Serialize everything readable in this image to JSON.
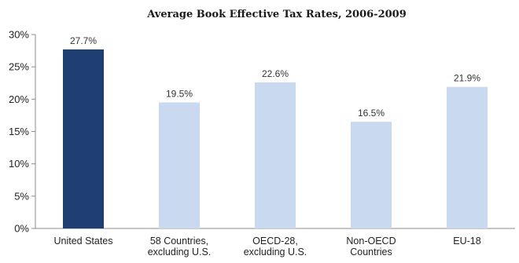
{
  "chart_data": {
    "type": "bar",
    "title": "Average Book Effective Tax Rates, 2006-2009",
    "xlabel": "",
    "ylabel": "",
    "ylim": [
      0,
      30
    ],
    "yticks": [
      "0%",
      "5%",
      "10%",
      "15%",
      "20%",
      "25%",
      "30%"
    ],
    "grid": false,
    "categories": [
      [
        "United States"
      ],
      [
        "58 Countries,",
        "excluding U.S."
      ],
      [
        "OECD-28,",
        "excluding U.S."
      ],
      [
        "Non-OECD",
        "Countries"
      ],
      [
        "EU-18"
      ]
    ],
    "values": [
      27.7,
      19.5,
      22.6,
      16.5,
      21.9
    ],
    "data_labels": [
      "27.7%",
      "19.5%",
      "22.6%",
      "16.5%",
      "21.9%"
    ],
    "colors": [
      "#1f3f73",
      "#c9d9ef",
      "#c9d9ef",
      "#c9d9ef",
      "#c9d9ef"
    ],
    "axis_color": "#8c8c8c"
  }
}
